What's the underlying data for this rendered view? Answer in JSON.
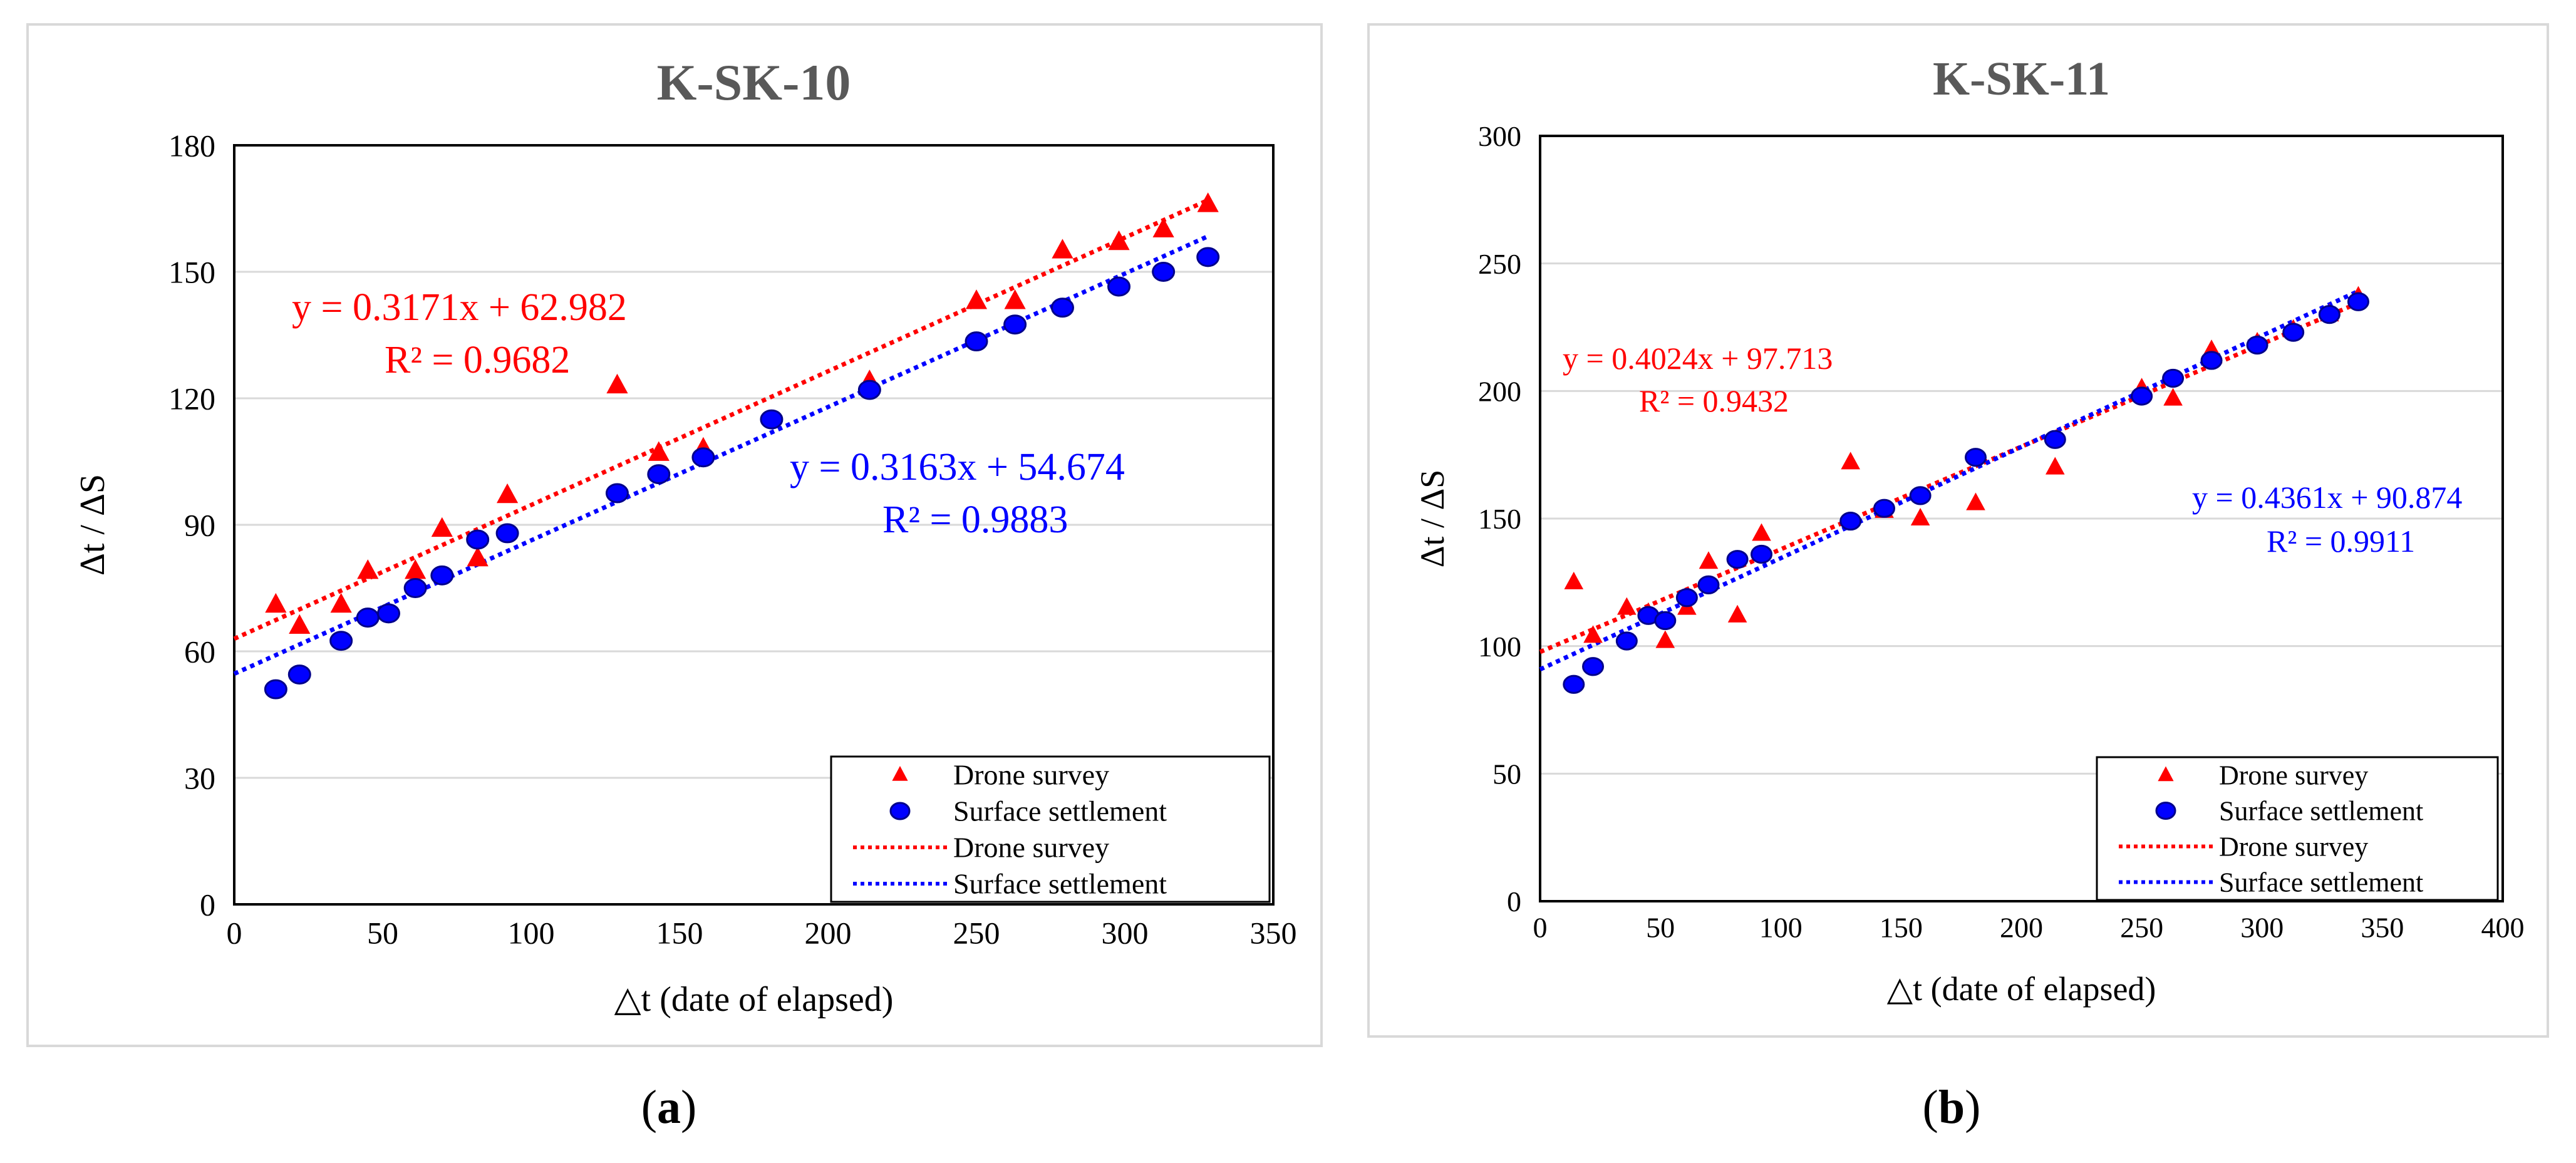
{
  "chart_data": [
    {
      "id": "a",
      "type": "scatter",
      "title": "K-SK-10",
      "xlabel": "△t (date of elapsed)",
      "ylabel": "Δt / ΔS",
      "xlim": [
        0,
        350
      ],
      "ylim": [
        0,
        180
      ],
      "xticks": [
        0,
        50,
        100,
        150,
        200,
        250,
        300,
        350
      ],
      "yticks": [
        0,
        30,
        60,
        90,
        120,
        150,
        180
      ],
      "grid": true,
      "legend_position": "bottom-right",
      "legend": [
        "Drone survey",
        "Surface settlement",
        "Drone survey",
        "Surface settlement"
      ],
      "series": [
        {
          "name": "Drone survey",
          "marker": "triangle",
          "color": "#ff0000",
          "x": [
            14,
            22,
            36,
            45,
            61,
            70,
            82,
            92,
            129,
            143,
            158,
            214,
            250,
            263,
            279,
            298,
            313,
            328
          ],
          "y": [
            71,
            66,
            71,
            79,
            79,
            89,
            82,
            97,
            123,
            107,
            108,
            124,
            143,
            143,
            155,
            157,
            160,
            166
          ]
        },
        {
          "name": "Surface settlement",
          "marker": "circle",
          "color": "#0000ff",
          "x": [
            14,
            22,
            36,
            45,
            52,
            61,
            70,
            82,
            92,
            129,
            143,
            158,
            181,
            214,
            250,
            263,
            279,
            298,
            313,
            328
          ],
          "y": [
            51,
            54.5,
            62.5,
            68,
            69,
            75,
            78,
            86.5,
            88,
            97.5,
            102,
            106,
            115,
            122,
            133.5,
            137.5,
            141.5,
            146.5,
            150,
            153.5
          ]
        }
      ],
      "trendlines": [
        {
          "name": "Drone survey",
          "color": "#ff0000",
          "slope": 0.3171,
          "intercept": 62.982,
          "equation": "y = 0.3171x + 62.982",
          "r2": "R² = 0.9682",
          "x_range": [
            0,
            328
          ]
        },
        {
          "name": "Surface settlement",
          "color": "#0000ff",
          "slope": 0.3163,
          "intercept": 54.674,
          "equation": "y = 0.3163x + 54.674",
          "r2": "R² = 0.9883",
          "x_range": [
            0,
            328
          ]
        }
      ]
    },
    {
      "id": "b",
      "type": "scatter",
      "title": "K-SK-11",
      "xlabel": "△t (date of elapsed)",
      "ylabel": "Δt / ΔS",
      "xlim": [
        0,
        400
      ],
      "ylim": [
        0,
        300
      ],
      "xticks": [
        0,
        50,
        100,
        150,
        200,
        250,
        300,
        350,
        400
      ],
      "yticks": [
        0,
        50,
        100,
        150,
        200,
        250,
        300
      ],
      "grid": true,
      "legend_position": "bottom-right",
      "legend": [
        "Drone survey",
        "Surface settlement",
        "Drone survey",
        "Surface settlement"
      ],
      "series": [
        {
          "name": "Drone survey",
          "marker": "triangle",
          "color": "#ff0000",
          "x": [
            14,
            22,
            36,
            45,
            52,
            61,
            70,
            82,
            92,
            129,
            143,
            158,
            181,
            214,
            250,
            263,
            279,
            298,
            313,
            328,
            340
          ],
          "y": [
            125,
            104,
            115,
            113,
            102,
            115,
            133,
            112,
            144,
            172,
            153,
            150,
            156,
            170,
            201,
            197,
            216,
            219,
            224,
            230,
            237
          ]
        },
        {
          "name": "Surface settlement",
          "marker": "circle",
          "color": "#0000ff",
          "x": [
            14,
            22,
            36,
            45,
            52,
            61,
            70,
            82,
            92,
            129,
            143,
            158,
            181,
            214,
            250,
            263,
            279,
            298,
            313,
            328,
            340
          ],
          "y": [
            85,
            92,
            102,
            112,
            110,
            119,
            124,
            134,
            136,
            149,
            154,
            159,
            174,
            181,
            198,
            205,
            212,
            218,
            223,
            230,
            235
          ]
        }
      ],
      "trendlines": [
        {
          "name": "Drone survey",
          "color": "#ff0000",
          "slope": 0.4024,
          "intercept": 97.713,
          "equation": "y = 0.4024x + 97.713",
          "r2": "R² = 0.9432",
          "x_range": [
            0,
            340
          ]
        },
        {
          "name": "Surface settlement",
          "color": "#0000ff",
          "slope": 0.4361,
          "intercept": 90.874,
          "equation": "y = 0.4361x + 90.874",
          "r2": "R² = 0.9911",
          "x_range": [
            0,
            340
          ]
        }
      ]
    }
  ],
  "captions": [
    "(a)",
    "(b)"
  ]
}
